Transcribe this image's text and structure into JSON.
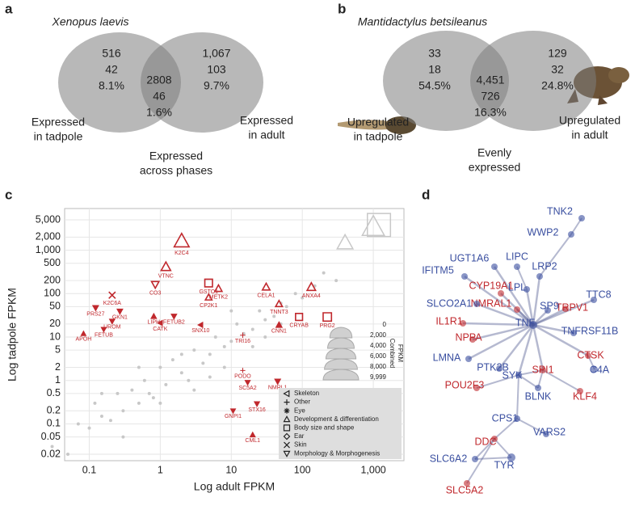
{
  "panel_labels": [
    "a",
    "b",
    "c",
    "d"
  ],
  "chart_data": [
    {
      "type": "venn",
      "title": "Xenopus laevis",
      "regions": [
        {
          "values": [
            516,
            42,
            8.1
          ],
          "value_labels": [
            "516",
            "42",
            "8.1%"
          ]
        },
        {
          "values": [
            2808,
            46,
            1.6
          ],
          "value_labels": [
            "2808",
            "46",
            "1.6%"
          ]
        },
        {
          "values": [
            1067,
            103,
            9.7
          ],
          "value_labels": [
            "1,067",
            "103",
            "9.7%"
          ]
        }
      ],
      "set_labels": [
        [
          "Expressed",
          "in tadpole"
        ],
        [
          "Expressed",
          "across phases"
        ],
        [
          "Expressed",
          "in adult"
        ]
      ]
    },
    {
      "type": "venn",
      "title": "Mantidactylus betsileanus",
      "regions": [
        {
          "values": [
            33,
            18,
            54.5
          ],
          "value_labels": [
            "33",
            "18",
            "54.5%"
          ]
        },
        {
          "values": [
            4451,
            726,
            16.3
          ],
          "value_labels": [
            "4,451",
            "726",
            "16.3%"
          ]
        },
        {
          "values": [
            129,
            32,
            24.8
          ],
          "value_labels": [
            "129",
            "32",
            "24.8%"
          ]
        }
      ],
      "set_labels": [
        [
          "Upregulated",
          "in tadpole"
        ],
        [
          "Evenly",
          "expressed"
        ],
        [
          "Upregulated",
          "in adult"
        ]
      ]
    },
    {
      "type": "scatter",
      "xlabel": "Log adult FPKM",
      "ylabel": "Log tadpole FPKM",
      "log_x": true,
      "log_y": true,
      "grid": true,
      "xlim": [
        0.045,
        2700
      ],
      "ylim": [
        0.0142,
        9100
      ],
      "xticks": [
        0.1,
        1,
        10,
        100,
        {
          "value": 1000,
          "label": "1,000"
        }
      ],
      "yticks": [
        0.02,
        0.05,
        0.1,
        0.2,
        0.5,
        1,
        2,
        5,
        10,
        20,
        50,
        100,
        200,
        500,
        {
          "value": 1000,
          "label": "1,000"
        },
        {
          "value": 2000,
          "label": "2,000"
        },
        {
          "value": 5000,
          "label": "5,000"
        }
      ],
      "gene_color": "#c0282d",
      "categories": [
        {
          "name": "Skeleton",
          "symbol": "triangle-left"
        },
        {
          "name": "Other",
          "symbol": "plus"
        },
        {
          "name": "Eye",
          "symbol": "asterisk"
        },
        {
          "name": "Development & differentiation",
          "symbol": "triangle-up"
        },
        {
          "name": "Body size and shape",
          "symbol": "square"
        },
        {
          "name": "Ear",
          "symbol": "diamond"
        },
        {
          "name": "Skin",
          "symbol": "cross"
        },
        {
          "name": "Morphology & Morphogenesis",
          "symbol": "triangle-down"
        }
      ],
      "background_points": {
        "color": "#c8c8c8",
        "x": [
          0.03,
          0.05,
          0.07,
          0.1,
          0.12,
          0.15,
          0.2,
          0.25,
          0.3,
          0.4,
          0.5,
          0.6,
          0.7,
          0.8,
          1,
          1.2,
          1.5,
          2,
          2.5,
          3,
          4,
          5,
          6,
          8,
          10,
          12,
          15,
          20,
          25,
          30,
          40,
          50,
          60,
          80,
          100,
          150,
          200,
          300,
          0.3,
          0.5,
          1,
          2,
          3,
          5,
          8,
          10,
          20,
          30,
          50,
          0.15
        ],
        "y": [
          0.03,
          0.02,
          0.1,
          0.08,
          0.3,
          0.15,
          0.12,
          0.5,
          0.2,
          0.6,
          0.3,
          1,
          0.5,
          0.4,
          2,
          0.8,
          3,
          1.5,
          1,
          5,
          2.5,
          4,
          10,
          6,
          8,
          20,
          12,
          15,
          40,
          25,
          30,
          60,
          50,
          100,
          80,
          150,
          300,
          200,
          0.05,
          2,
          0.3,
          4,
          0.6,
          1.2,
          2,
          40,
          6,
          10,
          20,
          0.5
        ]
      },
      "gray_markers": [
        {
          "x": 400,
          "y": 1500,
          "category": 3
        },
        {
          "x": 1000,
          "y": 3500,
          "category": 3
        },
        {
          "x": 1200,
          "y": 3800,
          "category": 4
        }
      ],
      "genes": [
        {
          "label": "K2C4",
          "x": 2.0,
          "y": 1640,
          "category": 3
        },
        {
          "label": "VTNC",
          "x": 1.2,
          "y": 416,
          "category": 3
        },
        {
          "label": "CO3",
          "x": 0.85,
          "y": 162,
          "category": 7
        },
        {
          "label": "K2C6A",
          "x": 0.21,
          "y": 92,
          "category": 6
        },
        {
          "label": "PRS27",
          "x": 0.123,
          "y": 47,
          "category": 7
        },
        {
          "label": "GKN1",
          "x": 0.27,
          "y": 39,
          "category": 7
        },
        {
          "label": "UROM",
          "x": 0.21,
          "y": 23,
          "category": 7
        },
        {
          "label": "FETUB",
          "x": 0.16,
          "y": 15,
          "category": 7
        },
        {
          "label": "APOH",
          "x": 0.083,
          "y": 12,
          "category": 3
        },
        {
          "label": "LIPH",
          "x": 0.81,
          "y": 30,
          "category": 3
        },
        {
          "label": "CATK",
          "x": 1.0,
          "y": 21,
          "category": 0
        },
        {
          "label": "FETUB2",
          "x": 1.56,
          "y": 30,
          "category": 7
        },
        {
          "label": "SNX10",
          "x": 3.7,
          "y": 19,
          "category": 0
        },
        {
          "label": "CP2K1",
          "x": 4.8,
          "y": 82,
          "category": 3
        },
        {
          "label": "GSTO1",
          "x": 4.8,
          "y": 175,
          "category": 4
        },
        {
          "label": "METK2",
          "x": 6.6,
          "y": 131,
          "category": 3
        },
        {
          "label": "CELA1",
          "x": 31,
          "y": 142,
          "category": 3
        },
        {
          "label": "TNNT3",
          "x": 47,
          "y": 58,
          "category": 3
        },
        {
          "label": "CNN1",
          "x": 47,
          "y": 19,
          "category": 3
        },
        {
          "label": "CRYAB",
          "x": 90,
          "y": 29,
          "category": 4
        },
        {
          "label": "ANXA4",
          "x": 134,
          "y": 142,
          "category": 3
        },
        {
          "label": "PRG2",
          "x": 225,
          "y": 29,
          "category": 4
        },
        {
          "label": "TRI16",
          "x": 14.5,
          "y": 11,
          "category": 1
        },
        {
          "label": "PODO",
          "x": 14.5,
          "y": 1.7,
          "category": 1
        },
        {
          "label": "SC5A2",
          "x": 17,
          "y": 0.9,
          "category": 7
        },
        {
          "label": "NMRL1",
          "x": 45,
          "y": 0.95,
          "category": 7
        },
        {
          "label": "STX16",
          "x": 23,
          "y": 0.29,
          "category": 7
        },
        {
          "label": "GNPI1",
          "x": 10.6,
          "y": 0.2,
          "category": 7
        },
        {
          "label": "CML1",
          "x": 20,
          "y": 0.056,
          "category": 3
        }
      ],
      "size_legend": {
        "title": [
          "Combined",
          "FPKM"
        ],
        "values": [
          0,
          2000,
          4000,
          6000,
          8000,
          9999
        ],
        "value_labels": [
          "0",
          "2,000",
          "4,000",
          "6,000",
          "8,000",
          "9,999"
        ]
      }
    },
    {
      "type": "network",
      "colors": {
        "blue": "#3a4fa0",
        "red": "#c0282d"
      },
      "nodes": [
        {
          "label": "TNK2",
          "group": "blue"
        },
        {
          "label": "WWP2",
          "group": "blue"
        },
        {
          "label": "LIPC",
          "group": "blue"
        },
        {
          "label": "LRP2",
          "group": "blue"
        },
        {
          "label": "UGT1A6",
          "group": "blue"
        },
        {
          "label": "IFITM5",
          "group": "blue"
        },
        {
          "label": "TTC8",
          "group": "blue"
        },
        {
          "label": "CYP19A1",
          "group": "red"
        },
        {
          "label": "LPL",
          "group": "blue"
        },
        {
          "label": "NMRAL1",
          "group": "red"
        },
        {
          "label": "TRPV1",
          "group": "red"
        },
        {
          "label": "SLCO2A1",
          "group": "blue"
        },
        {
          "label": "SP9",
          "group": "blue"
        },
        {
          "label": "IL1R1",
          "group": "red"
        },
        {
          "label": "TNF",
          "group": "blue"
        },
        {
          "label": "TNFRSF11B",
          "group": "blue"
        },
        {
          "label": "NPPA",
          "group": "red"
        },
        {
          "label": "CTSK",
          "group": "red"
        },
        {
          "label": "LMNA",
          "group": "blue"
        },
        {
          "label": "PTK2B",
          "group": "blue"
        },
        {
          "label": "SYK",
          "group": "blue"
        },
        {
          "label": "SPI1",
          "group": "red"
        },
        {
          "label": "C4A",
          "group": "blue"
        },
        {
          "label": "POU2F3",
          "group": "red"
        },
        {
          "label": "BLNK",
          "group": "blue"
        },
        {
          "label": "KLF4",
          "group": "red"
        },
        {
          "label": "CPS1",
          "group": "blue"
        },
        {
          "label": "VARS2",
          "group": "blue"
        },
        {
          "label": "DDC",
          "group": "red"
        },
        {
          "label": "TYR",
          "group": "blue"
        },
        {
          "label": "SLC6A2",
          "group": "blue"
        },
        {
          "label": "SLC5A2",
          "group": "red"
        }
      ],
      "edges": [
        [
          0,
          1
        ],
        [
          1,
          3
        ],
        [
          3,
          14
        ],
        [
          2,
          8
        ],
        [
          8,
          14
        ],
        [
          4,
          14
        ],
        [
          5,
          14
        ],
        [
          7,
          14
        ],
        [
          9,
          14
        ],
        [
          10,
          14
        ],
        [
          11,
          14
        ],
        [
          12,
          14
        ],
        [
          13,
          14
        ],
        [
          16,
          14
        ],
        [
          18,
          14
        ],
        [
          15,
          14
        ],
        [
          6,
          14
        ],
        [
          17,
          14
        ],
        [
          22,
          17
        ],
        [
          19,
          14
        ],
        [
          20,
          14
        ],
        [
          21,
          14
        ],
        [
          20,
          21
        ],
        [
          20,
          24
        ],
        [
          21,
          24
        ],
        [
          21,
          25
        ],
        [
          23,
          20
        ],
        [
          20,
          26
        ],
        [
          26,
          27
        ],
        [
          26,
          28
        ],
        [
          28,
          29
        ],
        [
          28,
          30
        ],
        [
          28,
          31
        ],
        [
          29,
          30
        ]
      ]
    }
  ]
}
